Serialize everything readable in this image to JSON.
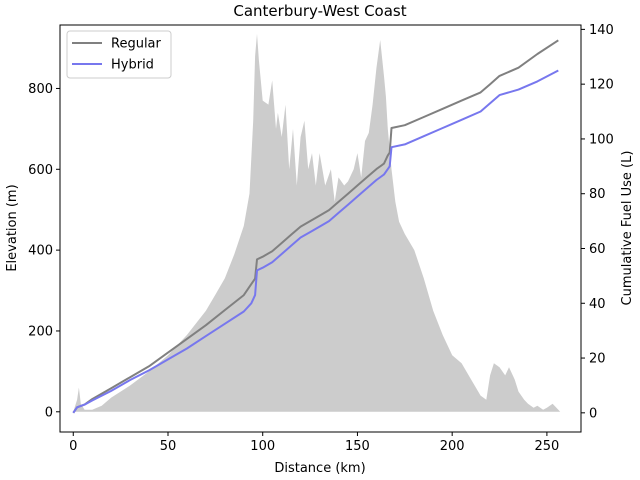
{
  "chart_data": {
    "type": "line",
    "title": "Canterbury-West Coast",
    "xlabel": "Distance (km)",
    "ylabel_left": "Elevation (m)",
    "ylabel_right": "Cumulative Fuel Use (L)",
    "xlim": [
      -7,
      268
    ],
    "ylim_left": [
      -50,
      957
    ],
    "ylim_right": [
      -7,
      141.6
    ],
    "xticks": [
      0,
      50,
      100,
      150,
      200,
      250
    ],
    "yticks_left": [
      0,
      200,
      400,
      600,
      800
    ],
    "yticks_right": [
      0,
      20,
      40,
      60,
      80,
      100,
      120,
      140
    ],
    "legend_position": "upper-left",
    "elevation_profile": {
      "name": "Elevation",
      "color": "#cccccc",
      "x": [
        0,
        2,
        3,
        4,
        6,
        10,
        15,
        20,
        30,
        40,
        50,
        60,
        70,
        75,
        80,
        85,
        90,
        93,
        95,
        96,
        97,
        98,
        100,
        103,
        105,
        107,
        108,
        110,
        112,
        114,
        116,
        118,
        120,
        122,
        124,
        126,
        128,
        130,
        133,
        136,
        138,
        140,
        143,
        145,
        148,
        150,
        152,
        154,
        156,
        158,
        160,
        162,
        164,
        165,
        166,
        168,
        170,
        172,
        175,
        180,
        185,
        190,
        195,
        200,
        205,
        210,
        215,
        218,
        220,
        222,
        225,
        228,
        230,
        233,
        235,
        238,
        240,
        243,
        245,
        248,
        250,
        253,
        255,
        257
      ],
      "y": [
        0,
        30,
        60,
        20,
        5,
        5,
        15,
        35,
        65,
        100,
        140,
        190,
        250,
        290,
        330,
        390,
        460,
        540,
        720,
        880,
        935,
        870,
        770,
        760,
        820,
        700,
        740,
        680,
        760,
        600,
        700,
        560,
        680,
        720,
        600,
        640,
        560,
        640,
        560,
        600,
        520,
        580,
        560,
        570,
        600,
        640,
        580,
        670,
        690,
        760,
        850,
        920,
        830,
        780,
        700,
        600,
        520,
        470,
        440,
        400,
        330,
        250,
        190,
        140,
        120,
        80,
        40,
        30,
        90,
        120,
        110,
        90,
        110,
        80,
        50,
        30,
        20,
        10,
        15,
        5,
        10,
        20,
        10,
        0
      ]
    },
    "series": [
      {
        "name": "Regular",
        "color": "#808080",
        "axis": "right",
        "x": [
          0,
          2,
          6,
          10,
          20,
          30,
          40,
          50,
          60,
          70,
          80,
          90,
          94,
          96,
          97,
          100,
          105,
          110,
          115,
          120,
          125,
          130,
          135,
          140,
          145,
          150,
          155,
          160,
          164,
          166,
          167,
          168,
          175,
          185,
          195,
          205,
          215,
          220,
          225,
          235,
          245,
          256
        ],
        "y": [
          0,
          2,
          3,
          5,
          9,
          13,
          17,
          22,
          27,
          32,
          37.5,
          43,
          47,
          49,
          56,
          57,
          59,
          62,
          65,
          68,
          70,
          72,
          74,
          77,
          80,
          83,
          86,
          89,
          91,
          94,
          95,
          104,
          105,
          108,
          111,
          114,
          117,
          120,
          123,
          126,
          131,
          136
        ]
      },
      {
        "name": "Hybrid",
        "color": "#7777ee",
        "axis": "right",
        "x": [
          0,
          2,
          6,
          10,
          20,
          30,
          40,
          50,
          60,
          70,
          80,
          90,
          94,
          96,
          97,
          100,
          105,
          110,
          115,
          120,
          125,
          130,
          135,
          140,
          145,
          150,
          155,
          160,
          164,
          166,
          167,
          168,
          175,
          185,
          195,
          205,
          215,
          220,
          225,
          235,
          245,
          256
        ],
        "y": [
          0,
          2,
          3,
          4.5,
          8,
          12,
          15.5,
          19.5,
          23.5,
          28,
          32.5,
          37,
          40,
          43,
          52,
          53,
          55,
          58,
          61,
          64,
          66,
          68,
          70,
          73,
          76,
          79,
          82,
          85,
          87,
          89,
          90,
          97,
          98,
          101,
          104,
          107,
          110,
          113,
          116,
          118,
          121,
          125
        ]
      }
    ]
  }
}
